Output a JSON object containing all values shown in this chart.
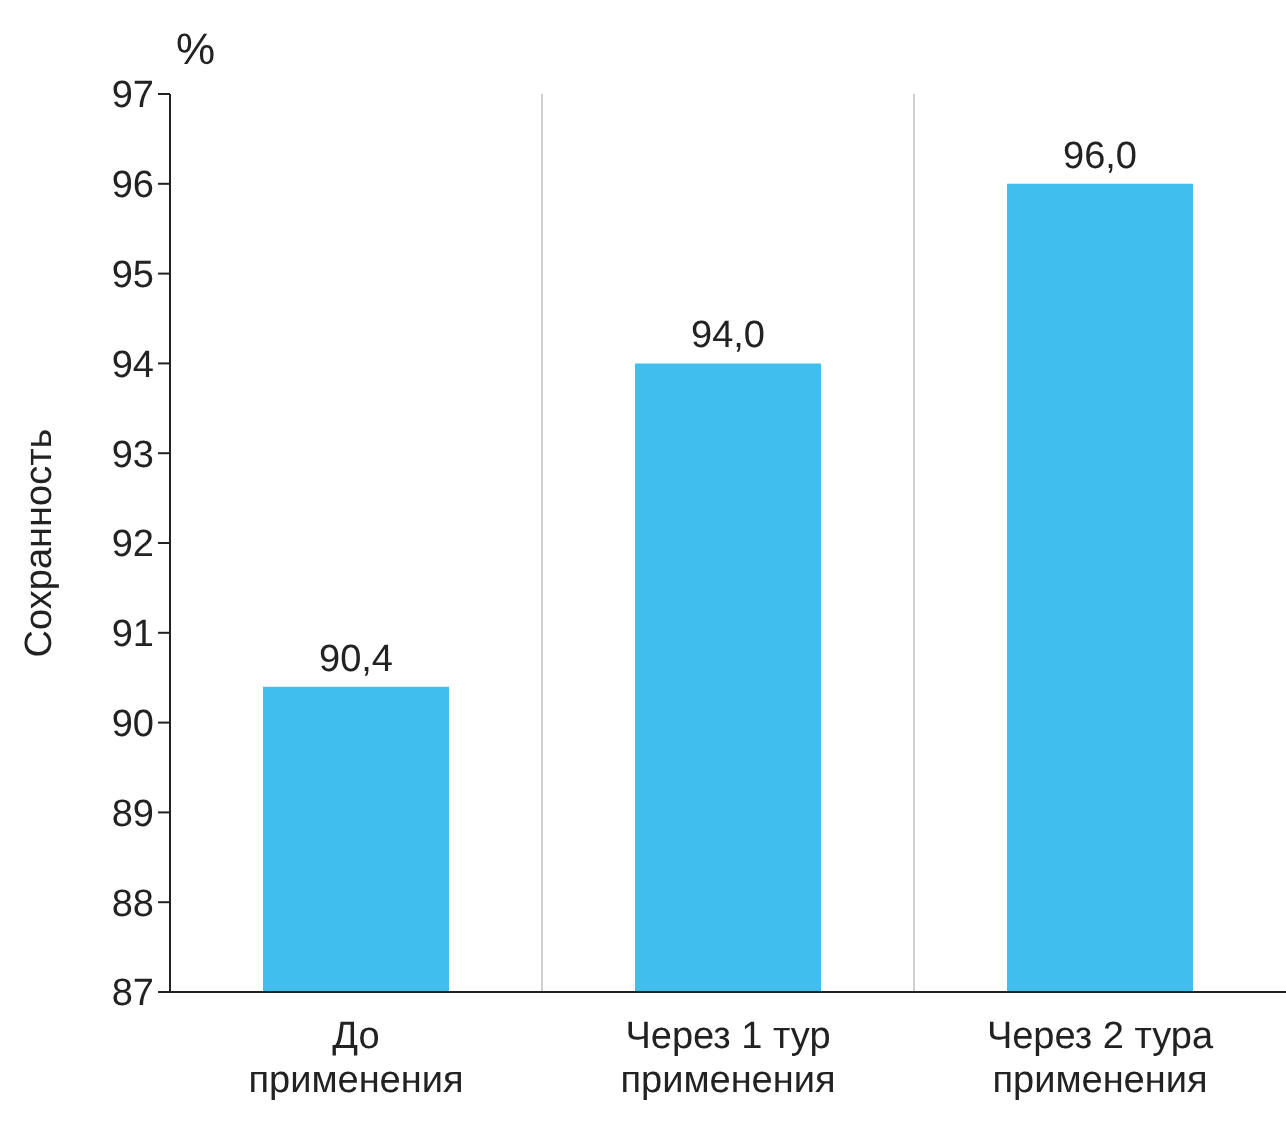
{
  "chart_data": {
    "type": "bar",
    "ylabel": "Сохранность",
    "annotations": [
      "%"
    ],
    "categories": [
      "До применения",
      "Через 1 тур применения",
      "Через 2 тура применения"
    ],
    "values": [
      90.4,
      94.0,
      96.0
    ],
    "color": "#40bfee",
    "value_labels": [
      "90,4",
      "94,0",
      "96,0"
    ],
    "ylim": [
      87,
      97
    ],
    "yticks": [
      87,
      88,
      89,
      90,
      91,
      92,
      93,
      94,
      95,
      96,
      97
    ],
    "grid": "x"
  }
}
